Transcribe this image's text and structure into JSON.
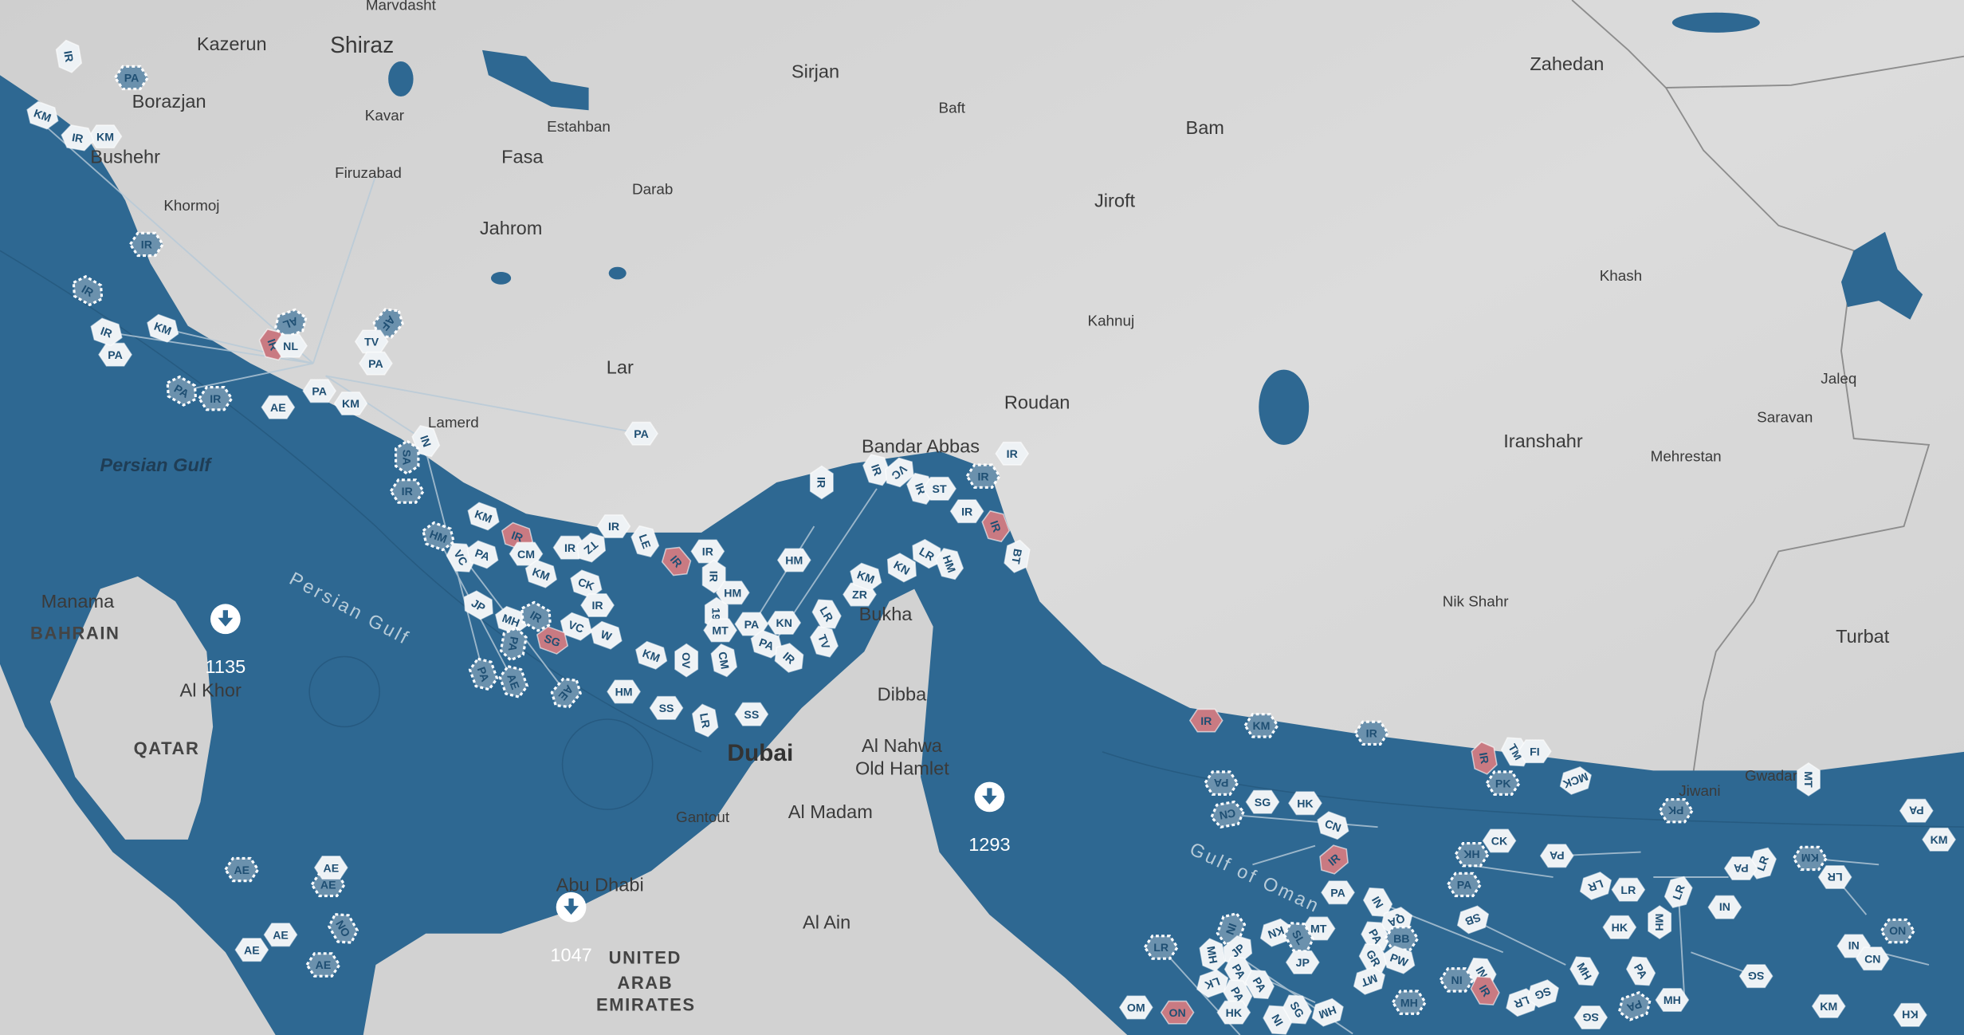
{
  "map": {
    "colors": {
      "land": "#d4d4d4",
      "sea": "#2e6892",
      "vessel": "#eef2f5",
      "vessel_dashed": "#6b91ad",
      "vessel_iran": "#c97a82",
      "vessel_text": "#1f4f73",
      "cluster": "#ffffff"
    },
    "places": [
      "Marvdasht",
      "Kazerun",
      "Shiraz",
      "Borazjan",
      "Kavar",
      "Estahban",
      "Fasa",
      "Firuzabad",
      "Bushehr",
      "Khormoj",
      "Darab",
      "Jahrom",
      "Sirjan",
      "Baft",
      "Bam",
      "Jiroft",
      "Zahedan",
      "Khash",
      "Kahnuj",
      "Lar",
      "Lamerd",
      "Roudan",
      "Bandar Abbas",
      "Iranshahr",
      "Saravan",
      "Jaleq",
      "Mehrestan",
      "Nik Shahr",
      "Turbat",
      "Manama",
      "BAHRAIN",
      "Al Khor",
      "QATAR",
      "Bukha",
      "Dibba",
      "Al Nahwa",
      "Old Hamlet",
      "Dubai",
      "Gantout",
      "Al Madam",
      "Abu Dhabi",
      "Al Ain",
      "UNITED",
      "ARAB",
      "EMIRATES",
      "Jiwani",
      "Gwadar"
    ],
    "seas": [
      "Persian Gulf",
      "Persian Gulf",
      "Gulf of Oman"
    ],
    "clusters": [
      {
        "count": "1135",
        "icon": "download-arrow-icon"
      },
      {
        "count": "1293",
        "icon": "download-arrow-icon"
      },
      {
        "count": "1047",
        "icon": "download-arrow-icon"
      }
    ],
    "vessels": [
      "KM",
      "IR",
      "PA",
      "KM",
      "IR",
      "IR",
      "IR",
      "PA",
      "IR",
      "KM",
      "IR",
      "AL",
      "NL",
      "AF",
      "TV",
      "PA",
      "PA",
      "KM",
      "AE",
      "PA",
      "IR",
      "IN",
      "SA",
      "IR",
      "PA",
      "KM",
      "IR",
      "CM",
      "HM",
      "VC",
      "PA",
      "KM",
      "CK",
      "IR",
      "JP",
      "MH",
      "IR",
      "VC",
      "W",
      "SG",
      "PA",
      "PA",
      "AE",
      "AE",
      "IR",
      "IR",
      "TZ",
      "LE",
      "IR",
      "IR",
      "IR",
      "HM",
      "19",
      "MT",
      "PA",
      "KN",
      "PA",
      "KM",
      "OV",
      "CM",
      "IR",
      "TV",
      "LR",
      "ZR",
      "KM",
      "KN",
      "LR",
      "HM",
      "HM",
      "SS",
      "LR",
      "SS",
      "IR",
      "IR",
      "VC",
      "IR",
      "ST",
      "IR",
      "IR",
      "IR",
      "IR",
      "BT",
      "HM",
      "IR",
      "KM",
      "IR",
      "IR",
      "TM",
      "FI",
      "PK",
      "MCK",
      "PK",
      "MT",
      "PA",
      "SG",
      "HK",
      "CN",
      "CN",
      "IR",
      "CK",
      "HK",
      "PA",
      "PA",
      "KM",
      "KM",
      "LR",
      "PA",
      "LR",
      "LR",
      "LR",
      "LR",
      "NI",
      "PA",
      "KN",
      "NI",
      "PA",
      "MT",
      "IN",
      "QA",
      "PA",
      "BB",
      "SB",
      "HK",
      "MH",
      "GR",
      "PW",
      "MT",
      "LR",
      "MH",
      "JP",
      "PA",
      "SL",
      "JP",
      "NI",
      "IN",
      "IR",
      "LR",
      "SG",
      "MH",
      "PA",
      "MH",
      "PA",
      "SG",
      "NI",
      "CN",
      "NO",
      "KH",
      "KM",
      "SG",
      "LK",
      "PA",
      "PA",
      "OM",
      "ON",
      "HK",
      "NI",
      "HM",
      "SG",
      "MH",
      "AE",
      "AE",
      "AE",
      "AE",
      "AE",
      "NO",
      "AE"
    ]
  }
}
